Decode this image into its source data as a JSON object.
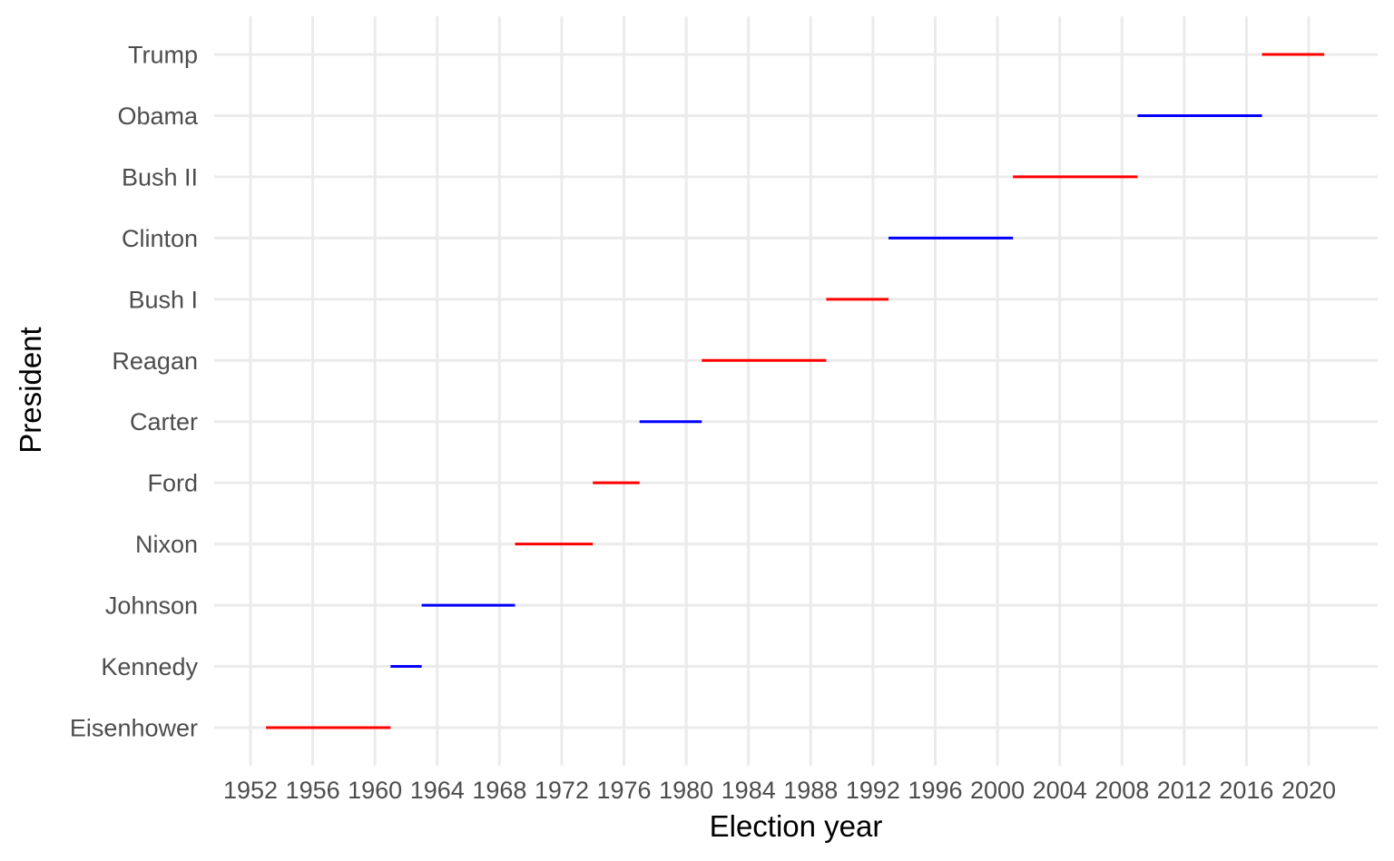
{
  "chart_data": {
    "type": "line",
    "subtype": "segment-timeline",
    "title": "",
    "xlabel": "Election year",
    "ylabel": "President",
    "xlim": [
      1950,
      2025
    ],
    "x_ticks": [
      1952,
      1956,
      1960,
      1964,
      1968,
      1972,
      1976,
      1980,
      1984,
      1988,
      1992,
      1996,
      2000,
      2004,
      2008,
      2012,
      2016,
      2020
    ],
    "grid": true,
    "legend": "none",
    "party_colors": {
      "Republican": "#ff0000",
      "Democratic": "#0000ff"
    },
    "categories": [
      "Eisenhower",
      "Kennedy",
      "Johnson",
      "Nixon",
      "Ford",
      "Carter",
      "Reagan",
      "Bush I",
      "Clinton",
      "Bush II",
      "Obama",
      "Trump"
    ],
    "segments": [
      {
        "president": "Eisenhower",
        "start": 1953,
        "end": 1961,
        "color": "#ff0000"
      },
      {
        "president": "Kennedy",
        "start": 1961,
        "end": 1963,
        "color": "#0000ff"
      },
      {
        "president": "Johnson",
        "start": 1963,
        "end": 1969,
        "color": "#0000ff"
      },
      {
        "president": "Nixon",
        "start": 1969,
        "end": 1974,
        "color": "#ff0000"
      },
      {
        "president": "Ford",
        "start": 1974,
        "end": 1977,
        "color": "#ff0000"
      },
      {
        "president": "Carter",
        "start": 1977,
        "end": 1981,
        "color": "#0000ff"
      },
      {
        "president": "Reagan",
        "start": 1981,
        "end": 1989,
        "color": "#ff0000"
      },
      {
        "president": "Bush I",
        "start": 1989,
        "end": 1993,
        "color": "#ff0000"
      },
      {
        "president": "Clinton",
        "start": 1993,
        "end": 2001,
        "color": "#0000ff"
      },
      {
        "president": "Bush II",
        "start": 2001,
        "end": 2009,
        "color": "#ff0000"
      },
      {
        "president": "Obama",
        "start": 2009,
        "end": 2017,
        "color": "#0000ff"
      },
      {
        "president": "Trump",
        "start": 2017,
        "end": 2021,
        "color": "#ff0000"
      }
    ]
  }
}
